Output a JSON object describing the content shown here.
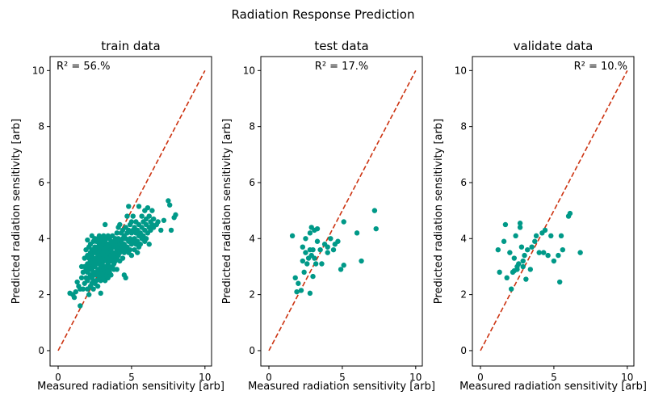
{
  "figure_title": "Radiation Response Prediction",
  "colors": {
    "points": "#009988",
    "identity_line": "#CC3311",
    "axes": "#000000"
  },
  "chart_data": [
    {
      "type": "scatter",
      "title": "train data",
      "xlabel": "Measured radiation sensitivity [arb]",
      "ylabel": "Predicted radiation sensitivity [arb]",
      "xlim": [
        -0.55,
        10.45
      ],
      "ylim": [
        -0.55,
        10.5
      ],
      "xticks": [
        0,
        5,
        10
      ],
      "yticks": [
        0,
        2,
        4,
        6,
        8,
        10
      ],
      "annotation": "R² = 56.%",
      "annotation_align": "left",
      "reference_line": {
        "x": [
          0,
          10
        ],
        "y": [
          0,
          10
        ],
        "style": "dashed"
      },
      "points": [
        [
          0.8,
          2.05
        ],
        [
          1.0,
          2.0
        ],
        [
          1.1,
          1.9
        ],
        [
          1.2,
          2.1
        ],
        [
          1.3,
          2.45
        ],
        [
          1.4,
          2.3
        ],
        [
          1.5,
          1.6
        ],
        [
          1.5,
          2.2
        ],
        [
          1.6,
          2.6
        ],
        [
          1.6,
          3.0
        ],
        [
          1.7,
          2.2
        ],
        [
          1.7,
          2.8
        ],
        [
          1.8,
          2.4
        ],
        [
          1.8,
          3.0
        ],
        [
          1.8,
          3.3
        ],
        [
          1.9,
          2.6
        ],
        [
          1.9,
          2.9
        ],
        [
          1.9,
          3.6
        ],
        [
          2.0,
          2.2
        ],
        [
          2.0,
          2.5
        ],
        [
          2.0,
          2.8
        ],
        [
          2.0,
          3.1
        ],
        [
          2.0,
          3.4
        ],
        [
          2.0,
          3.95
        ],
        [
          2.1,
          2.0
        ],
        [
          2.1,
          2.6
        ],
        [
          2.1,
          3.0
        ],
        [
          2.1,
          3.3
        ],
        [
          2.1,
          3.7
        ],
        [
          2.2,
          2.3
        ],
        [
          2.2,
          2.7
        ],
        [
          2.2,
          2.9
        ],
        [
          2.2,
          3.2
        ],
        [
          2.2,
          3.5
        ],
        [
          2.2,
          3.8
        ],
        [
          2.3,
          2.4
        ],
        [
          2.3,
          2.6
        ],
        [
          2.3,
          2.9
        ],
        [
          2.3,
          3.1
        ],
        [
          2.3,
          3.4
        ],
        [
          2.3,
          3.6
        ],
        [
          2.3,
          4.1
        ],
        [
          2.4,
          2.2
        ],
        [
          2.4,
          2.5
        ],
        [
          2.4,
          2.8
        ],
        [
          2.4,
          3.0
        ],
        [
          2.4,
          3.3
        ],
        [
          2.4,
          3.6
        ],
        [
          2.4,
          3.9
        ],
        [
          2.5,
          2.4
        ],
        [
          2.5,
          2.7
        ],
        [
          2.5,
          3.0
        ],
        [
          2.5,
          3.2
        ],
        [
          2.5,
          3.5
        ],
        [
          2.5,
          3.7
        ],
        [
          2.5,
          4.0
        ],
        [
          2.6,
          2.5
        ],
        [
          2.6,
          2.8
        ],
        [
          2.6,
          3.1
        ],
        [
          2.6,
          3.3
        ],
        [
          2.6,
          3.6
        ],
        [
          2.6,
          3.9
        ],
        [
          2.7,
          2.3
        ],
        [
          2.7,
          2.7
        ],
        [
          2.7,
          2.9
        ],
        [
          2.7,
          3.2
        ],
        [
          2.7,
          3.4
        ],
        [
          2.7,
          3.7
        ],
        [
          2.7,
          4.0
        ],
        [
          2.8,
          2.6
        ],
        [
          2.8,
          2.85
        ],
        [
          2.8,
          3.1
        ],
        [
          2.8,
          3.3
        ],
        [
          2.8,
          3.5
        ],
        [
          2.8,
          3.8
        ],
        [
          2.8,
          4.1
        ],
        [
          2.9,
          2.05
        ],
        [
          2.9,
          2.5
        ],
        [
          2.9,
          2.8
        ],
        [
          2.9,
          3.0
        ],
        [
          2.9,
          3.2
        ],
        [
          2.9,
          3.4
        ],
        [
          2.9,
          3.6
        ],
        [
          2.9,
          3.9
        ],
        [
          3.0,
          2.7
        ],
        [
          3.0,
          2.9
        ],
        [
          3.0,
          3.1
        ],
        [
          3.0,
          3.3
        ],
        [
          3.0,
          3.5
        ],
        [
          3.0,
          3.7
        ],
        [
          3.0,
          4.0
        ],
        [
          3.1,
          2.6
        ],
        [
          3.1,
          2.9
        ],
        [
          3.1,
          3.2
        ],
        [
          3.1,
          3.4
        ],
        [
          3.1,
          3.6
        ],
        [
          3.1,
          3.8
        ],
        [
          3.1,
          4.1
        ],
        [
          3.2,
          2.5
        ],
        [
          3.2,
          2.8
        ],
        [
          3.2,
          3.0
        ],
        [
          3.2,
          3.3
        ],
        [
          3.2,
          3.5
        ],
        [
          3.2,
          3.9
        ],
        [
          3.2,
          4.5
        ],
        [
          3.3,
          2.7
        ],
        [
          3.3,
          3.0
        ],
        [
          3.3,
          3.2
        ],
        [
          3.3,
          3.4
        ],
        [
          3.3,
          3.7
        ],
        [
          3.3,
          4.0
        ],
        [
          3.4,
          2.6
        ],
        [
          3.4,
          2.9
        ],
        [
          3.4,
          3.1
        ],
        [
          3.4,
          3.3
        ],
        [
          3.4,
          3.6
        ],
        [
          3.4,
          3.8
        ],
        [
          3.4,
          4.1
        ],
        [
          3.5,
          2.8
        ],
        [
          3.5,
          3.0
        ],
        [
          3.5,
          3.2
        ],
        [
          3.5,
          3.5
        ],
        [
          3.5,
          3.7
        ],
        [
          3.5,
          4.0
        ],
        [
          3.6,
          2.7
        ],
        [
          3.6,
          2.95
        ],
        [
          3.6,
          3.2
        ],
        [
          3.6,
          3.4
        ],
        [
          3.6,
          3.6
        ],
        [
          3.6,
          3.9
        ],
        [
          3.7,
          3.0
        ],
        [
          3.7,
          3.3
        ],
        [
          3.7,
          3.5
        ],
        [
          3.7,
          3.8
        ],
        [
          3.7,
          4.1
        ],
        [
          3.8,
          2.9
        ],
        [
          3.8,
          3.1
        ],
        [
          3.8,
          3.4
        ],
        [
          3.8,
          3.7
        ],
        [
          3.8,
          3.9
        ],
        [
          3.9,
          3.2
        ],
        [
          3.9,
          3.5
        ],
        [
          3.9,
          3.8
        ],
        [
          3.9,
          4.0
        ],
        [
          4.0,
          2.9
        ],
        [
          4.0,
          3.3
        ],
        [
          4.0,
          3.6
        ],
        [
          4.0,
          3.9
        ],
        [
          4.0,
          4.2
        ],
        [
          4.1,
          3.4
        ],
        [
          4.1,
          3.7
        ],
        [
          4.1,
          4.0
        ],
        [
          4.1,
          4.4
        ],
        [
          4.2,
          3.2
        ],
        [
          4.2,
          3.5
        ],
        [
          4.2,
          3.8
        ],
        [
          4.2,
          4.5
        ],
        [
          4.3,
          3.6
        ],
        [
          4.3,
          3.9
        ],
        [
          4.3,
          4.2
        ],
        [
          4.4,
          3.3
        ],
        [
          4.4,
          3.7
        ],
        [
          4.4,
          4.0
        ],
        [
          4.4,
          4.3
        ],
        [
          4.5,
          2.7
        ],
        [
          4.5,
          3.5
        ],
        [
          4.5,
          3.8
        ],
        [
          4.5,
          4.1
        ],
        [
          4.6,
          2.6
        ],
        [
          4.6,
          3.6
        ],
        [
          4.6,
          4.0
        ],
        [
          4.6,
          4.4
        ],
        [
          4.7,
          3.7
        ],
        [
          4.7,
          4.2
        ],
        [
          4.7,
          4.8
        ],
        [
          4.8,
          3.5
        ],
        [
          4.8,
          3.9
        ],
        [
          4.8,
          4.3
        ],
        [
          4.8,
          5.15
        ],
        [
          4.9,
          3.6
        ],
        [
          4.9,
          4.0
        ],
        [
          4.9,
          4.5
        ],
        [
          5.0,
          3.4
        ],
        [
          5.0,
          3.8
        ],
        [
          5.0,
          4.2
        ],
        [
          5.0,
          4.6
        ],
        [
          5.1,
          3.9
        ],
        [
          5.1,
          4.3
        ],
        [
          5.1,
          4.8
        ],
        [
          5.2,
          3.6
        ],
        [
          5.2,
          4.0
        ],
        [
          5.2,
          4.4
        ],
        [
          5.3,
          3.8
        ],
        [
          5.3,
          4.2
        ],
        [
          5.3,
          4.6
        ],
        [
          5.4,
          3.5
        ],
        [
          5.4,
          3.9
        ],
        [
          5.4,
          4.3
        ],
        [
          5.5,
          3.7
        ],
        [
          5.5,
          4.1
        ],
        [
          5.5,
          4.5
        ],
        [
          5.5,
          5.15
        ],
        [
          5.6,
          3.8
        ],
        [
          5.6,
          4.2
        ],
        [
          5.7,
          4.0
        ],
        [
          5.7,
          4.4
        ],
        [
          5.7,
          4.8
        ],
        [
          5.8,
          4.1
        ],
        [
          5.8,
          4.6
        ],
        [
          5.9,
          3.9
        ],
        [
          5.9,
          4.3
        ],
        [
          5.9,
          5.0
        ],
        [
          6.0,
          4.0
        ],
        [
          6.0,
          4.5
        ],
        [
          6.0,
          4.7
        ],
        [
          6.1,
          4.2
        ],
        [
          6.1,
          5.1
        ],
        [
          6.2,
          3.8
        ],
        [
          6.2,
          4.4
        ],
        [
          6.2,
          4.8
        ],
        [
          6.3,
          4.3
        ],
        [
          6.3,
          4.6
        ],
        [
          6.4,
          4.5
        ],
        [
          6.4,
          5.0
        ],
        [
          6.5,
          4.4
        ],
        [
          6.5,
          4.7
        ],
        [
          6.8,
          4.6
        ],
        [
          7.0,
          4.3
        ],
        [
          7.5,
          5.35
        ],
        [
          7.6,
          5.2
        ],
        [
          7.7,
          4.3
        ],
        [
          7.9,
          4.75
        ],
        [
          8.0,
          4.85
        ],
        [
          6.7,
          4.5
        ],
        [
          7.2,
          4.65
        ]
      ]
    },
    {
      "type": "scatter",
      "title": "test data",
      "xlabel": "Measured radiation sensitivity [arb]",
      "ylabel": "Predicted radiation sensitivity [arb]",
      "xlim": [
        -0.55,
        10.45
      ],
      "ylim": [
        -0.55,
        10.5
      ],
      "xticks": [
        0,
        5,
        10
      ],
      "yticks": [
        0,
        2,
        4,
        6,
        8,
        10
      ],
      "annotation": "R² = 17.%",
      "annotation_align": "center",
      "reference_line": {
        "x": [
          0,
          10
        ],
        "y": [
          0,
          10
        ],
        "style": "dashed"
      },
      "points": [
        [
          1.6,
          4.1
        ],
        [
          1.8,
          2.6
        ],
        [
          1.9,
          2.1
        ],
        [
          2.0,
          2.4
        ],
        [
          2.2,
          2.15
        ],
        [
          2.3,
          3.2
        ],
        [
          2.3,
          3.7
        ],
        [
          2.4,
          2.8
        ],
        [
          2.5,
          3.5
        ],
        [
          2.5,
          4.0
        ],
        [
          2.6,
          3.1
        ],
        [
          2.7,
          3.3
        ],
        [
          2.8,
          3.6
        ],
        [
          2.8,
          4.2
        ],
        [
          2.8,
          2.05
        ],
        [
          2.9,
          3.4
        ],
        [
          2.9,
          4.4
        ],
        [
          3.0,
          3.6
        ],
        [
          3.0,
          2.65
        ],
        [
          3.1,
          3.3
        ],
        [
          3.1,
          4.3
        ],
        [
          3.2,
          3.1
        ],
        [
          3.3,
          3.9
        ],
        [
          3.3,
          4.35
        ],
        [
          3.5,
          3.6
        ],
        [
          3.6,
          3.1
        ],
        [
          3.8,
          3.8
        ],
        [
          4.0,
          3.7
        ],
        [
          4.0,
          3.5
        ],
        [
          4.2,
          4.0
        ],
        [
          4.4,
          3.6
        ],
        [
          4.5,
          3.8
        ],
        [
          4.7,
          3.9
        ],
        [
          4.9,
          2.9
        ],
        [
          5.1,
          3.05
        ],
        [
          5.1,
          4.6
        ],
        [
          6.0,
          4.2
        ],
        [
          6.3,
          3.2
        ],
        [
          7.2,
          5.0
        ],
        [
          7.3,
          4.35
        ]
      ]
    },
    {
      "type": "scatter",
      "title": "validate data",
      "xlabel": "Measured radiation sensitivity [arb]",
      "ylabel": "Predicted radiation sensitivity [arb]",
      "xlim": [
        -0.55,
        10.45
      ],
      "ylim": [
        -0.55,
        10.5
      ],
      "xticks": [
        0,
        5,
        10
      ],
      "yticks": [
        0,
        2,
        4,
        6,
        8,
        10
      ],
      "annotation": "R² = 10.%",
      "annotation_align": "right",
      "reference_line": {
        "x": [
          0,
          10
        ],
        "y": [
          0,
          10
        ],
        "style": "dashed"
      },
      "points": [
        [
          1.2,
          3.6
        ],
        [
          1.3,
          2.8
        ],
        [
          1.6,
          3.9
        ],
        [
          1.7,
          4.5
        ],
        [
          1.8,
          2.6
        ],
        [
          2.0,
          3.5
        ],
        [
          2.1,
          2.2
        ],
        [
          2.2,
          2.8
        ],
        [
          2.3,
          3.3
        ],
        [
          2.4,
          4.1
        ],
        [
          2.5,
          2.9
        ],
        [
          2.6,
          3.1
        ],
        [
          2.7,
          4.4
        ],
        [
          2.7,
          4.55
        ],
        [
          2.8,
          3.7
        ],
        [
          2.9,
          3.0
        ],
        [
          3.0,
          3.4
        ],
        [
          3.1,
          2.55
        ],
        [
          3.2,
          3.6
        ],
        [
          3.4,
          2.9
        ],
        [
          3.5,
          3.7
        ],
        [
          3.7,
          3.9
        ],
        [
          3.8,
          4.1
        ],
        [
          4.0,
          3.5
        ],
        [
          4.2,
          4.2
        ],
        [
          4.4,
          4.3
        ],
        [
          4.6,
          3.4
        ],
        [
          4.8,
          4.1
        ],
        [
          5.0,
          3.2
        ],
        [
          5.3,
          3.4
        ],
        [
          5.4,
          2.45
        ],
        [
          5.5,
          4.1
        ],
        [
          5.6,
          3.6
        ],
        [
          6.0,
          4.8
        ],
        [
          6.1,
          4.9
        ],
        [
          6.8,
          3.5
        ],
        [
          2.3,
          2.85
        ],
        [
          2.5,
          3.0
        ],
        [
          2.9,
          3.2
        ],
        [
          4.3,
          3.5
        ]
      ]
    }
  ]
}
